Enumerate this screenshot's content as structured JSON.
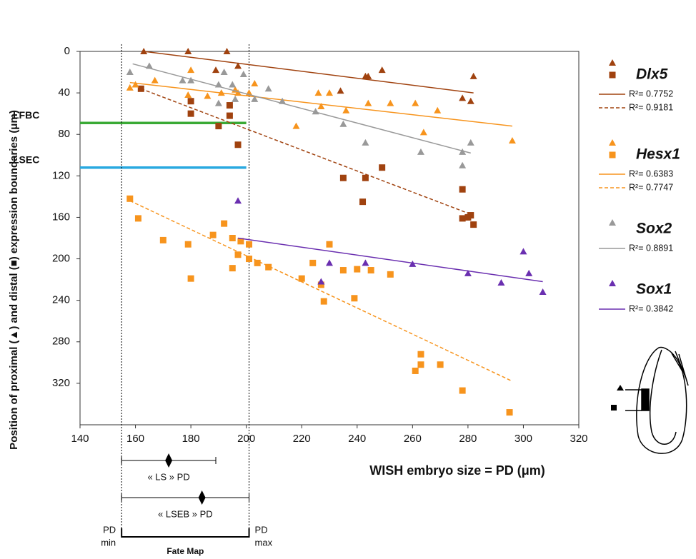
{
  "chart_data": {
    "type": "scatter",
    "x_label": "WISH embryo size = PD (μm)",
    "y_label": "Position of proximal (▲) and distal (■) expression boundaries (μm)",
    "xlim": [
      140,
      320
    ],
    "xticks": [
      140,
      160,
      180,
      200,
      220,
      240,
      260,
      280,
      300,
      320
    ],
    "ylim": [
      360,
      0
    ],
    "yticks": [
      0,
      40,
      80,
      120,
      160,
      200,
      240,
      280,
      320
    ],
    "genes": [
      {
        "name": "Dlx5",
        "color": "#a0420f",
        "proximal": {
          "x": [
            163,
            179,
            193,
            189,
            197,
            234,
            243,
            244,
            249,
            278,
            281,
            282
          ],
          "values": [
            0,
            0,
            0,
            18,
            14,
            38,
            24,
            24,
            18,
            45,
            48,
            24
          ],
          "fit": {
            "label": "R²= 0.7752",
            "x": [
              163,
              282
            ],
            "values": [
              0,
              40
            ]
          }
        },
        "distal": {
          "x": [
            162,
            180,
            180,
            190,
            194,
            194,
            197,
            235,
            243,
            242,
            249,
            278,
            278,
            280,
            281,
            282
          ],
          "values": [
            36,
            48,
            60,
            72,
            52,
            62,
            90,
            122,
            122,
            145,
            112,
            133,
            161,
            160,
            158,
            167
          ],
          "fit": {
            "label": "R²= 0.9181",
            "x": [
              162,
              282
            ],
            "values": [
              36,
              158
            ]
          }
        }
      },
      {
        "name": "Hesx1",
        "color": "#f7941d",
        "proximal": {
          "x": [
            158,
            160,
            167,
            180,
            179,
            186,
            191,
            196,
            197,
            201,
            203,
            218,
            226,
            227,
            230,
            236,
            244,
            252,
            261,
            264,
            269,
            296
          ],
          "values": [
            35,
            32,
            28,
            18,
            42,
            43,
            40,
            37,
            40,
            40,
            31,
            72,
            40,
            53,
            40,
            57,
            50,
            50,
            50,
            78,
            57,
            86
          ],
          "fit": {
            "label": "R²= 0.6383",
            "x": [
              158,
              296
            ],
            "values": [
              30,
              72
            ]
          }
        },
        "distal": {
          "x": [
            158,
            161,
            170,
            179,
            180,
            188,
            192,
            195,
            195,
            197,
            198,
            201,
            201,
            204,
            208,
            220,
            224,
            227,
            228,
            230,
            235,
            239,
            240,
            245,
            252,
            261,
            263,
            263,
            270,
            278,
            295
          ],
          "values": [
            142,
            161,
            182,
            186,
            219,
            177,
            166,
            180,
            209,
            196,
            183,
            186,
            200,
            204,
            208,
            219,
            204,
            225,
            241,
            186,
            211,
            238,
            210,
            211,
            215,
            308,
            292,
            302,
            302,
            327,
            348
          ],
          "fit": {
            "label": "R²= 0.7747",
            "x": [
              158,
              296
            ],
            "values": [
              144,
              318
            ]
          }
        }
      },
      {
        "name": "Sox2",
        "color": "#999999",
        "proximal": {
          "x": [
            158,
            165,
            177,
            180,
            190,
            190,
            192,
            195,
            196,
            199,
            203,
            208,
            213,
            225,
            235,
            243,
            263,
            278,
            278,
            281
          ],
          "values": [
            20,
            14,
            28,
            28,
            32,
            50,
            20,
            32,
            46,
            22,
            46,
            36,
            48,
            58,
            70,
            88,
            97,
            97,
            110,
            88
          ],
          "fit": {
            "label": "R²= 0.8891",
            "x": [
              159,
              281
            ],
            "values": [
              12,
              98
            ]
          }
        }
      },
      {
        "name": "Sox1",
        "color": "#6a2fb0",
        "proximal": {
          "x": [
            197,
            227,
            230,
            243,
            260,
            280,
            292,
            300,
            302,
            307
          ],
          "values": [
            144,
            222,
            204,
            204,
            205,
            214,
            223,
            193,
            214,
            232
          ],
          "fit": {
            "label": "R²= 0.3842",
            "x": [
              197,
              307
            ],
            "values": [
              180,
              222
            ]
          }
        }
      }
    ],
    "reference_lines": [
      {
        "label": "LFBC",
        "value": 69,
        "x": [
          140,
          200
        ],
        "color": "#3aaa35"
      },
      {
        "label": "LSEC",
        "value": 112,
        "x": [
          140,
          200
        ],
        "color": "#29a9e0"
      }
    ],
    "fate_map": {
      "bounds": [
        155,
        201
      ],
      "min_label": [
        "PD",
        "min"
      ],
      "max_label": [
        "PD",
        "max"
      ],
      "label": "Fate Map",
      "ranges": [
        {
          "label": "« LS » PD",
          "x": [
            155,
            189
          ],
          "center": 172
        },
        {
          "label": "« LSEB » PD",
          "x": [
            155,
            201
          ],
          "center": 184
        }
      ]
    }
  }
}
